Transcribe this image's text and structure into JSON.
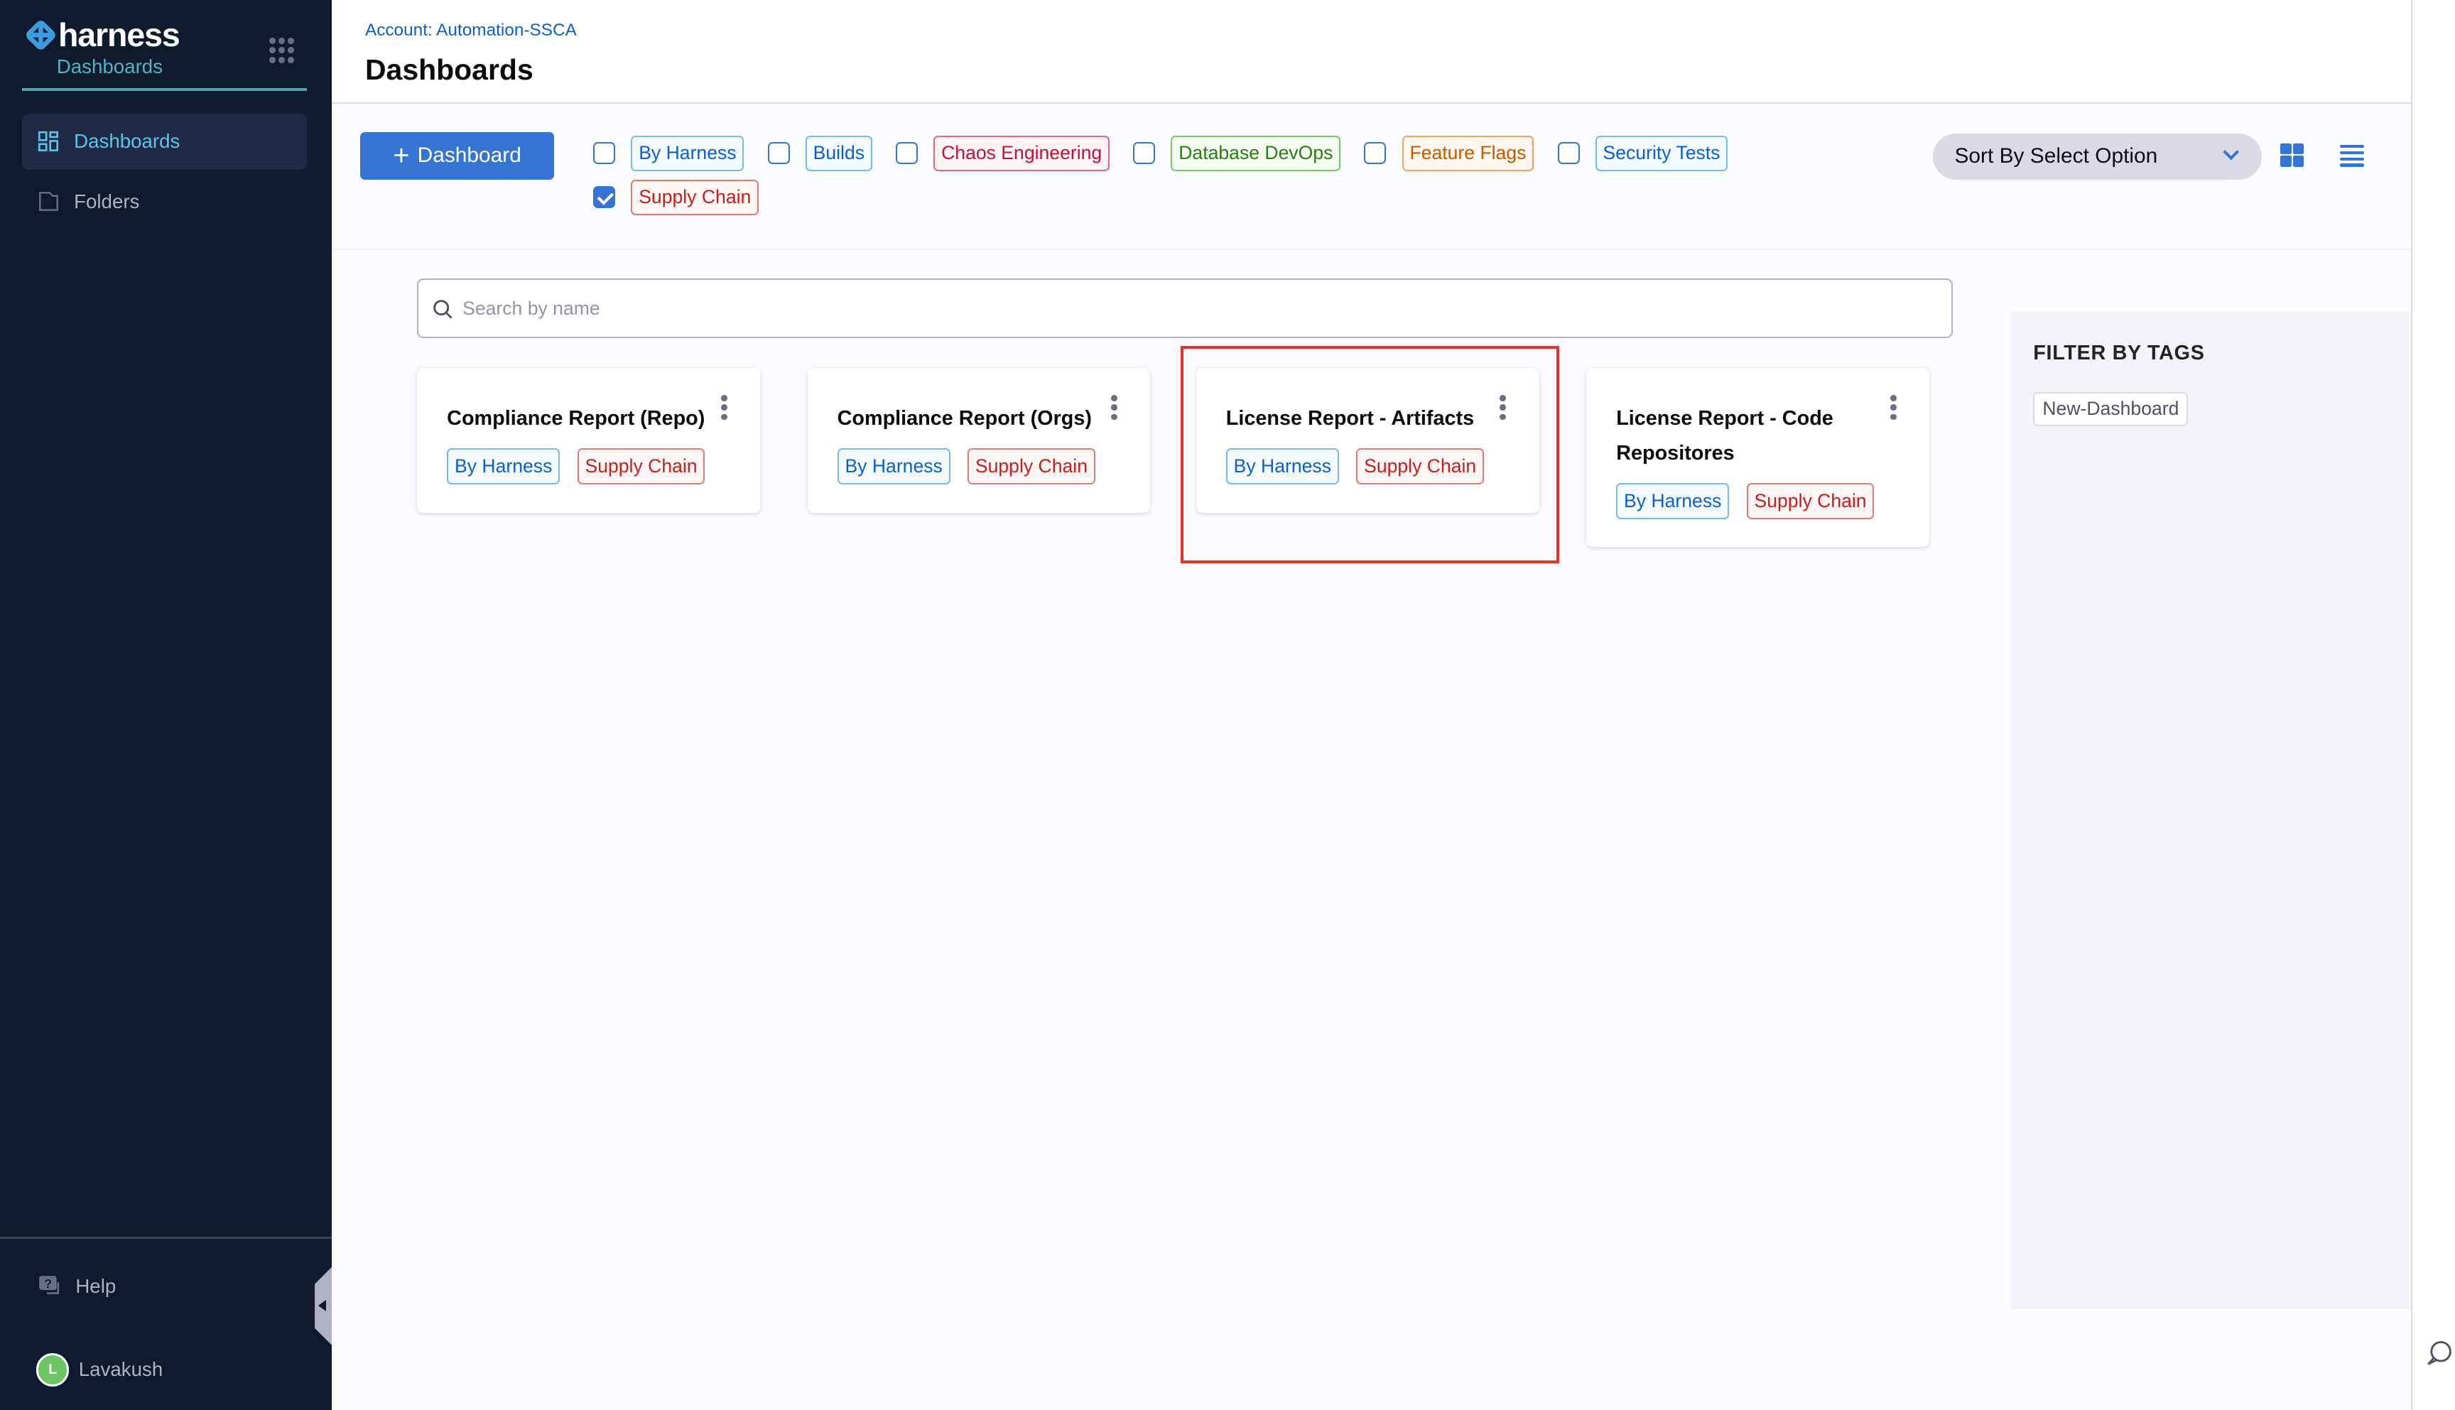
{
  "sidebar": {
    "logo_text": "harness",
    "module": "Dashboards",
    "items": [
      {
        "label": "Dashboards",
        "icon": "dashboard-icon",
        "active": true
      },
      {
        "label": "Folders",
        "icon": "folder-icon",
        "active": false
      }
    ],
    "help": "Help",
    "user": {
      "name": "Lavakush",
      "initial": "L",
      "avatar_color": "#6cc462"
    }
  },
  "header": {
    "breadcrumb": "Account: Automation-SSCA",
    "title": "Dashboards"
  },
  "toolbar": {
    "add_label": "Dashboard",
    "filters": [
      {
        "label": "By Harness",
        "checked": false
      },
      {
        "label": "Builds",
        "checked": false
      },
      {
        "label": "Chaos Engineering",
        "checked": false
      },
      {
        "label": "Database DevOps",
        "checked": false
      },
      {
        "label": "Feature Flags",
        "checked": false
      },
      {
        "label": "Security Tests",
        "checked": false
      },
      {
        "label": "Supply Chain",
        "checked": true
      }
    ],
    "sort_label": "Sort By Select Option",
    "view": "grid"
  },
  "search": {
    "placeholder": "Search by name",
    "value": ""
  },
  "cards": [
    {
      "title": "Compliance Report (Repo)",
      "tags": [
        "By Harness",
        "Supply Chain"
      ]
    },
    {
      "title": "Compliance Report (Orgs)",
      "tags": [
        "By Harness",
        "Supply Chain"
      ]
    },
    {
      "title": "License Report - Artifacts",
      "tags": [
        "By Harness",
        "Supply Chain"
      ],
      "highlighted": true
    },
    {
      "title": "License Report - Code Repositores",
      "tags": [
        "By Harness",
        "Supply Chain"
      ]
    }
  ],
  "tag_panel": {
    "title": "FILTER BY TAGS",
    "tags": [
      "New-Dashboard"
    ]
  },
  "colors": {
    "accent": "#3574d3",
    "sidebar_bg": "#0f1a2e",
    "highlight": "#e0342a"
  }
}
